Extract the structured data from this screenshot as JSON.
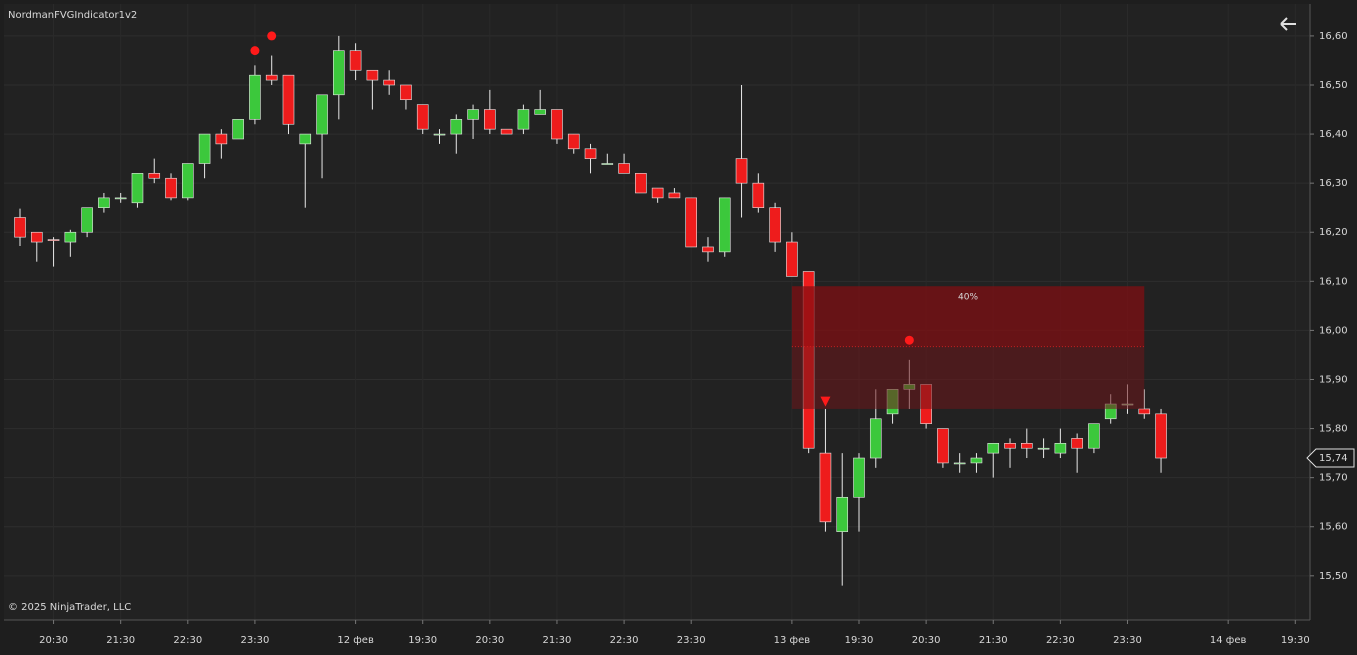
{
  "chart_data": {
    "type": "candlestick",
    "title": "NordmanFVGIndicator1v2",
    "footer": "© 2025 NinjaTrader, LLC",
    "categories": [
      null,
      null,
      "20:30",
      null,
      null,
      null,
      "21:30",
      null,
      null,
      null,
      "22:30",
      null,
      null,
      null,
      "23:30",
      null,
      null,
      null,
      null,
      null,
      "12 фев",
      null,
      null,
      null,
      "19:30",
      null,
      null,
      null,
      "20:30",
      null,
      null,
      null,
      "21:30",
      null,
      null,
      null,
      "22:30",
      null,
      null,
      null,
      "23:30",
      null,
      null,
      null,
      null,
      null,
      "13 фев",
      null,
      null,
      null,
      "19:30",
      null,
      null,
      null,
      "20:30",
      null,
      null,
      null,
      "21:30",
      null,
      null,
      null,
      "22:30",
      null,
      null,
      null,
      "23:30",
      null,
      null,
      null,
      null,
      null,
      "14 фев",
      null,
      null,
      null,
      "19:30"
    ],
    "open": [
      16.23,
      16.2,
      16.185,
      16.18,
      16.2,
      16.25,
      16.27,
      16.26,
      16.32,
      16.31,
      16.27,
      16.34,
      16.4,
      16.39,
      16.43,
      16.52,
      16.52,
      16.38,
      16.4,
      16.48,
      16.57,
      16.53,
      16.51,
      16.5,
      16.46,
      16.4,
      16.4,
      16.43,
      16.45,
      16.41,
      16.41,
      16.44,
      16.45,
      16.4,
      16.37,
      16.34,
      16.34,
      16.32,
      16.29,
      16.28,
      16.27,
      16.17,
      16.16,
      16.35,
      16.3,
      16.25,
      16.18,
      16.12,
      15.75,
      15.59,
      15.66,
      15.74,
      15.83,
      15.88,
      15.89,
      15.8,
      15.73,
      15.73,
      15.75,
      15.77,
      15.77,
      15.76,
      15.75,
      15.78,
      15.76,
      15.82,
      15.85,
      15.84,
      15.83,
      null,
      null,
      null,
      null,
      null,
      null,
      null,
      null
    ],
    "high": [
      16.248,
      16.2,
      16.19,
      16.205,
      16.25,
      16.28,
      16.28,
      16.32,
      16.35,
      16.32,
      16.34,
      16.4,
      16.41,
      16.43,
      16.54,
      16.56,
      16.52,
      16.4,
      16.48,
      16.6,
      16.585,
      16.53,
      16.53,
      16.5,
      16.46,
      16.41,
      16.44,
      16.46,
      16.49,
      16.41,
      16.46,
      16.49,
      16.45,
      16.4,
      16.38,
      16.36,
      16.36,
      16.32,
      16.29,
      16.29,
      16.27,
      16.19,
      16.27,
      16.5,
      16.32,
      16.26,
      16.2,
      16.12,
      15.84,
      15.75,
      15.75,
      15.88,
      15.88,
      15.94,
      15.89,
      15.8,
      15.75,
      15.75,
      15.77,
      15.78,
      15.8,
      15.78,
      15.8,
      15.79,
      15.81,
      15.87,
      15.89,
      15.88,
      15.84,
      null,
      null,
      null,
      null,
      null,
      null,
      null,
      null
    ],
    "low": [
      16.172,
      16.14,
      16.13,
      16.15,
      16.19,
      16.24,
      16.26,
      16.25,
      16.3,
      16.265,
      16.265,
      16.31,
      16.35,
      16.39,
      16.42,
      16.5,
      16.4,
      16.25,
      16.31,
      16.43,
      16.51,
      16.45,
      16.48,
      16.45,
      16.4,
      16.38,
      16.36,
      16.39,
      16.4,
      16.4,
      16.4,
      16.44,
      16.38,
      16.36,
      16.32,
      16.34,
      16.32,
      16.28,
      16.26,
      16.27,
      16.17,
      16.14,
      16.15,
      16.23,
      16.24,
      16.16,
      16.11,
      15.75,
      15.59,
      15.48,
      15.59,
      15.72,
      15.81,
      15.84,
      15.8,
      15.72,
      15.71,
      15.71,
      15.7,
      15.72,
      15.74,
      15.74,
      15.74,
      15.71,
      15.75,
      15.81,
      15.83,
      15.82,
      15.71,
      null,
      null,
      null,
      null,
      null,
      null,
      null,
      null
    ],
    "close": [
      16.19,
      16.18,
      16.183,
      16.2,
      16.25,
      16.27,
      16.27,
      16.32,
      16.31,
      16.27,
      16.34,
      16.4,
      16.38,
      16.43,
      16.52,
      16.51,
      16.42,
      16.4,
      16.48,
      16.57,
      16.53,
      16.51,
      16.5,
      16.47,
      16.41,
      16.4,
      16.43,
      16.45,
      16.41,
      16.4,
      16.45,
      16.45,
      16.39,
      16.37,
      16.35,
      16.34,
      16.32,
      16.28,
      16.27,
      16.27,
      16.17,
      16.16,
      16.27,
      16.3,
      16.25,
      16.18,
      16.11,
      15.76,
      15.61,
      15.66,
      15.74,
      15.82,
      15.88,
      15.89,
      15.81,
      15.73,
      15.73,
      15.74,
      15.77,
      15.76,
      15.76,
      15.76,
      15.77,
      15.76,
      15.81,
      15.85,
      15.85,
      15.83,
      15.74,
      null,
      null,
      null,
      null,
      null,
      null,
      null,
      null
    ],
    "dots": [
      null,
      null,
      null,
      null,
      null,
      null,
      null,
      null,
      null,
      null,
      null,
      null,
      null,
      null,
      16.57,
      16.6,
      null,
      null,
      null,
      null,
      null,
      null,
      null,
      null,
      null,
      null,
      null,
      null,
      null,
      null,
      null,
      null,
      null,
      null,
      null,
      null,
      null,
      null,
      null,
      null,
      null,
      null,
      null,
      null,
      null,
      null,
      null,
      null,
      null,
      null,
      null,
      null,
      null,
      15.98,
      null,
      null,
      null,
      null,
      null,
      null,
      null,
      null,
      null,
      null,
      null,
      null,
      null,
      null,
      null,
      null,
      null,
      null,
      null,
      null,
      null,
      null,
      null
    ],
    "triangles": [
      null,
      null,
      null,
      null,
      null,
      null,
      null,
      null,
      null,
      null,
      null,
      null,
      null,
      null,
      null,
      null,
      null,
      null,
      null,
      null,
      null,
      null,
      null,
      null,
      null,
      null,
      null,
      null,
      null,
      null,
      null,
      null,
      null,
      null,
      null,
      null,
      null,
      null,
      null,
      null,
      null,
      null,
      null,
      null,
      null,
      null,
      null,
      null,
      15.855,
      null,
      null,
      null,
      null,
      null,
      null,
      null,
      null,
      null,
      null,
      null,
      null,
      null,
      null,
      null,
      null,
      null,
      null,
      null,
      null,
      null,
      null,
      null,
      null,
      null,
      null,
      null,
      null
    ],
    "up_color": "#3cc83c",
    "down_color": "#ee1c1c",
    "signal_color": "#ff1a1a",
    "fvg_zone": {
      "start_index": 46,
      "end_index": 67,
      "top": 16.09,
      "mid": 15.967,
      "bottom": 15.84,
      "label": "40%"
    },
    "last_price": {
      "value": 15.74,
      "label": "15,74"
    },
    "ylim": [
      15.41,
      16.665
    ],
    "yticks": [
      {
        "value": 15.5,
        "label": "15,50"
      },
      {
        "value": 15.6,
        "label": "15,60"
      },
      {
        "value": 15.7,
        "label": "15,70"
      },
      {
        "value": 15.8,
        "label": "15,80"
      },
      {
        "value": 15.9,
        "label": "15,90"
      },
      {
        "value": 16.0,
        "label": "16,00"
      },
      {
        "value": 16.1,
        "label": "16,10"
      },
      {
        "value": 16.2,
        "label": "16,20"
      },
      {
        "value": 16.3,
        "label": "16,30"
      },
      {
        "value": 16.4,
        "label": "16,40"
      },
      {
        "value": 16.5,
        "label": "16,50"
      },
      {
        "value": 16.6,
        "label": "16,60"
      }
    ],
    "grid": true
  }
}
